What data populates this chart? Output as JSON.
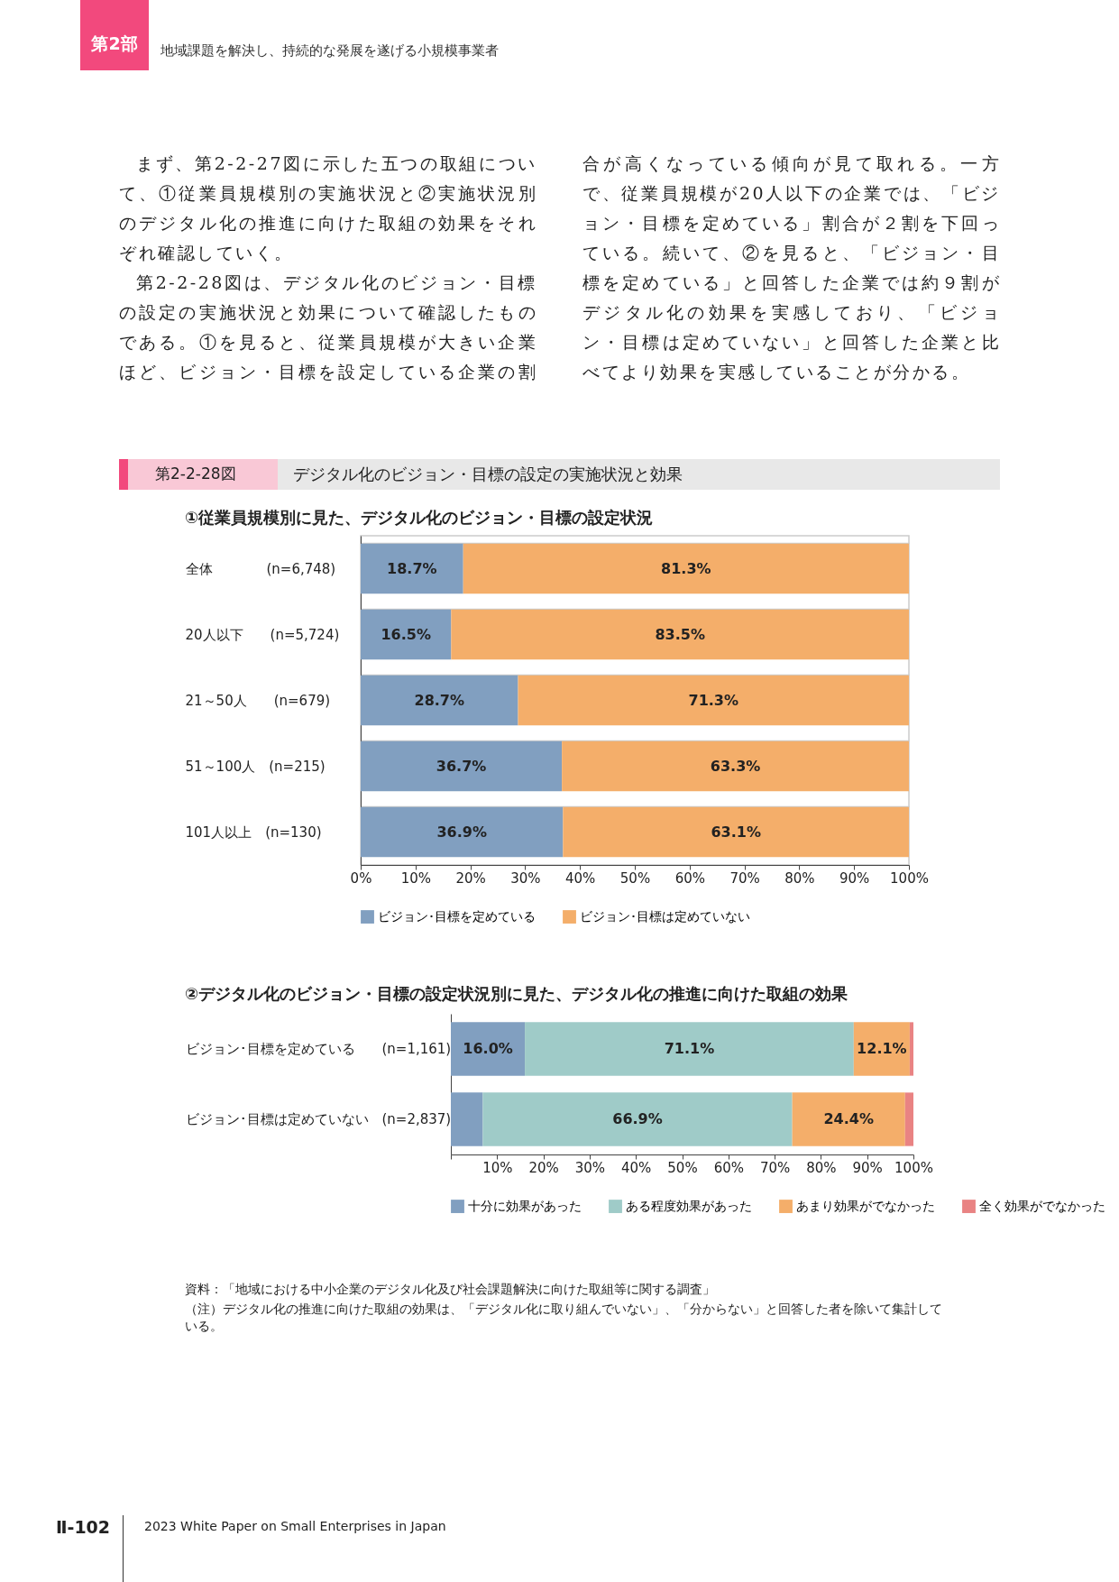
{
  "chart_data": [
    {
      "type": "bar",
      "orientation": "horizontal",
      "stacked": true,
      "title": "デジタル化のビジョン・目標の設定の実施状況と効果",
      "subtitle": "①従業員規模別に見た、デジタル化のビジョン・目標の設定状況",
      "annotations": [
        "第2部",
        "地域課題を解決し、持続的な発展を遂げる小規模事業者",
        "まず、第2-2-27図に示した五つの取組について、①従業員規模別の実施状況と②実施状況別のデジタル化の推進に向けた取組の効果をそれぞれ確認していく。",
        "第2-2-28図は、デジタル化のビジョン・目標の設定の実施状況と効果について確認したものである。①を見ると、従業員規模が大きい企業ほど、ビジョン・目標を設定している企業の割合が高くなっている傾向が見て取れる。一方で、従業員規模が20人以下の企業では、「ビジョン・目標を定めている」割合が２割を下回っている。続いて、②を見ると、「ビジョン・目標を定めている」と回答した企業では約９割がデジタル化の効果を実感しており、「ビジョン・目標は定めていない」と回答した企業と比べてより効果を実感していることが分かる。",
        "第2-2-28図",
        "Ⅱ-102",
        "2023 White Paper on Small Enterprises in Japan"
      ],
      "categories": [
        "全体　　　　(n=6,748)",
        "20人以下　　(n=5,724)",
        "21～50人　　(n=679)",
        "51～100人　(n=215)",
        "101人以上　(n=130)"
      ],
      "series": [
        {
          "name": "ビジョン･目標を定めている",
          "color": "#819fc0",
          "values": [
            18.7,
            16.5,
            28.7,
            36.7,
            36.9
          ],
          "value_labels": [
            "18.7%",
            "16.5%",
            "28.7%",
            "36.7%",
            "36.9%"
          ]
        },
        {
          "name": "ビジョン･目標は定めていない",
          "color": "#f4ae6a",
          "values": [
            81.3,
            83.5,
            71.3,
            63.3,
            63.1
          ],
          "value_labels": [
            "81.3%",
            "83.5%",
            "71.3%",
            "63.3%",
            "63.1%"
          ]
        }
      ],
      "xlim": [
        0,
        100
      ],
      "xticks": [
        {
          "value": 0,
          "label": "0%"
        },
        {
          "value": 10,
          "label": "10%"
        },
        {
          "value": 20,
          "label": "20%"
        },
        {
          "value": 30,
          "label": "30%"
        },
        {
          "value": 40,
          "label": "40%"
        },
        {
          "value": 50,
          "label": "50%"
        },
        {
          "value": 60,
          "label": "60%"
        },
        {
          "value": 70,
          "label": "70%"
        },
        {
          "value": 80,
          "label": "80%"
        },
        {
          "value": 90,
          "label": "90%"
        },
        {
          "value": 100,
          "label": "100%"
        }
      ],
      "grid": "y",
      "legend": "bottom"
    },
    {
      "type": "bar",
      "orientation": "horizontal",
      "stacked": true,
      "subtitle": "②デジタル化のビジョン・目標の設定状況別に見た、デジタル化の推進に向けた取組の効果",
      "annotations": [
        "資料：「地域における中小企業のデジタル化及び社会課題解決に向けた取組等に関する調査」",
        "（注）デジタル化の推進に向けた取組の効果は、「デジタル化に取り組んでいない」、「分からない」と回答した者を除いて集計している。"
      ],
      "categories": [
        "ビジョン･目標を定めている　　(n=1,161)",
        "ビジョン･目標は定めていない　(n=2,837)"
      ],
      "series": [
        {
          "name": "十分に効果があった",
          "color": "#819fc0",
          "values": [
            16.0,
            6.9
          ],
          "value_labels": [
            "16.0%",
            null
          ]
        },
        {
          "name": "ある程度効果があった",
          "color": "#9fcbc8",
          "values": [
            71.1,
            66.9
          ],
          "value_labels": [
            "71.1%",
            "66.9%"
          ]
        },
        {
          "name": "あまり効果がでなかった",
          "color": "#f4ae6a",
          "values": [
            12.1,
            24.4
          ],
          "value_labels": [
            "12.1%",
            "24.4%"
          ]
        },
        {
          "name": "全く効果がでなかった",
          "color": "#e98383",
          "values": [
            0.8,
            1.8
          ],
          "value_labels": [
            null,
            null
          ]
        }
      ],
      "xlim": [
        0,
        100
      ],
      "xticks": [
        {
          "value": 0,
          "label": null
        },
        {
          "value": 10,
          "label": "10%"
        },
        {
          "value": 20,
          "label": "20%"
        },
        {
          "value": 30,
          "label": "30%"
        },
        {
          "value": 40,
          "label": "40%"
        },
        {
          "value": 50,
          "label": "50%"
        },
        {
          "value": 60,
          "label": "60%"
        },
        {
          "value": 70,
          "label": "70%"
        },
        {
          "value": 80,
          "label": "80%"
        },
        {
          "value": 90,
          "label": "90%"
        },
        {
          "value": 100,
          "label": "100%"
        }
      ],
      "legend": "bottom"
    }
  ]
}
